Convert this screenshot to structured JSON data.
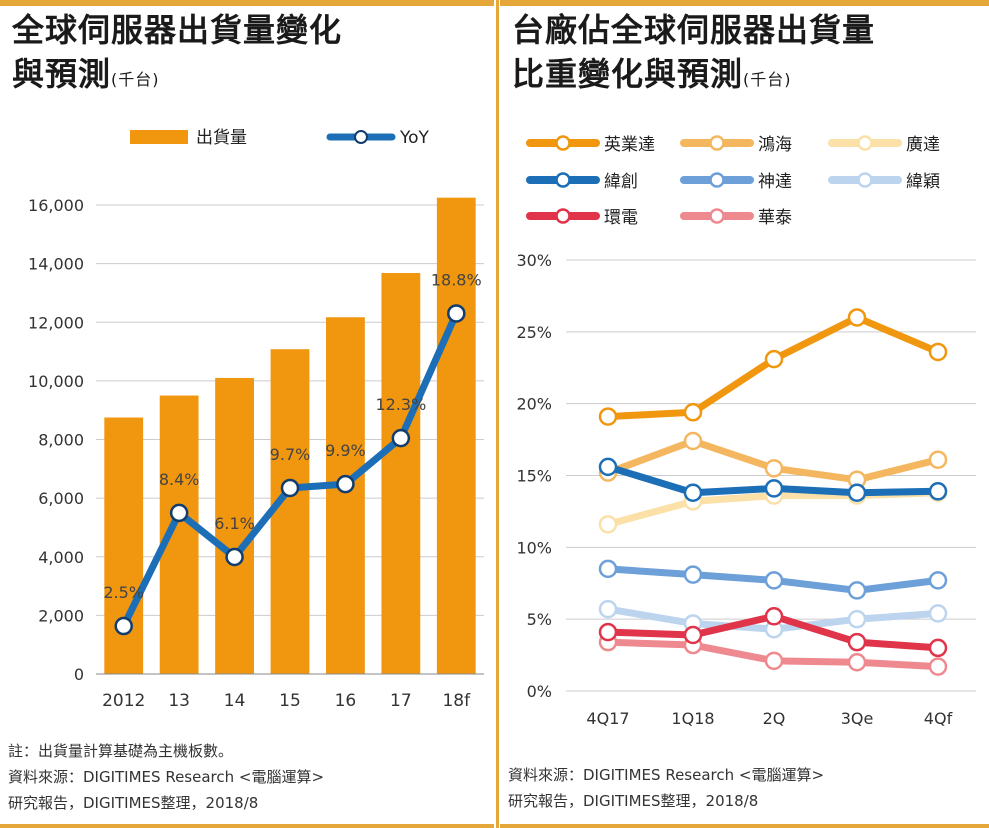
{
  "left": {
    "title_line1": "全球伺服器出貨量變化",
    "title_line2": "與預測",
    "unit": "(千台)",
    "note": "註：出貨量計算基礎為主機板數。",
    "source_line1": "資料來源：DIGITIMES Research <電腦運算>",
    "source_line2": "研究報告，DIGITIMES整理，2018/8"
  },
  "right": {
    "title_line1": "台廠佔全球伺服器出貨量",
    "title_line2": "比重變化與預測",
    "unit": "(千台)",
    "source_line1": "資料來源：DIGITIMES Research <電腦運算>",
    "source_line2": "研究報告，DIGITIMES整理，2018/8"
  },
  "chart_data": [
    {
      "type": "bar",
      "legend": [
        "出貨量",
        "YoY"
      ],
      "categories": [
        "2012",
        "13",
        "14",
        "15",
        "16",
        "17",
        "18f"
      ],
      "series": [
        {
          "name": "出貨量",
          "type": "bar",
          "color": "#f0960f",
          "values": [
            8750,
            9500,
            10100,
            11080,
            12170,
            13680,
            16250
          ]
        },
        {
          "name": "YoY",
          "type": "line",
          "color": "#1c6fb6",
          "values": [
            2.5,
            8.4,
            6.1,
            9.7,
            9.9,
            12.3,
            18.8
          ],
          "labels": [
            "2.5%",
            "8.4%",
            "6.1%",
            "9.7%",
            "9.9%",
            "12.3%",
            "18.8%"
          ]
        }
      ],
      "ylim": [
        0,
        16000
      ],
      "yticks": [
        0,
        2000,
        4000,
        6000,
        8000,
        10000,
        12000,
        14000,
        16000
      ],
      "ytick_labels": [
        "0",
        "2,000",
        "4,000",
        "6,000",
        "8,000",
        "10,000",
        "12,000",
        "14,000",
        "16,000"
      ],
      "grid": true
    },
    {
      "type": "line",
      "categories": [
        "4Q17",
        "1Q18",
        "2Q",
        "3Qe",
        "4Qf"
      ],
      "ylim": [
        0,
        30
      ],
      "yticks": [
        0,
        5,
        10,
        15,
        20,
        25,
        30
      ],
      "ytick_labels": [
        "0%",
        "5%",
        "10%",
        "15%",
        "20%",
        "25%",
        "30%"
      ],
      "grid": true,
      "legend_columns": 3,
      "series": [
        {
          "name": "英業達",
          "color": "#f0960f",
          "values": [
            19.1,
            19.4,
            23.1,
            26.0,
            23.6
          ]
        },
        {
          "name": "鴻海",
          "color": "#f5b660",
          "values": [
            15.2,
            17.4,
            15.5,
            14.7,
            16.1
          ]
        },
        {
          "name": "廣達",
          "color": "#fbe0a8",
          "values": [
            11.6,
            13.2,
            13.6,
            13.6,
            13.8
          ]
        },
        {
          "name": "緯創",
          "color": "#1c6fb6",
          "values": [
            15.6,
            13.8,
            14.1,
            13.8,
            13.9
          ]
        },
        {
          "name": "神達",
          "color": "#6d9fd8",
          "values": [
            8.5,
            8.1,
            7.7,
            7.0,
            7.7
          ]
        },
        {
          "name": "緯穎",
          "color": "#bcd4ee",
          "values": [
            5.7,
            4.7,
            4.3,
            5.0,
            5.4
          ]
        },
        {
          "name": "環電",
          "color": "#e0344a",
          "values": [
            4.1,
            3.9,
            5.2,
            3.4,
            3.0
          ]
        },
        {
          "name": "華泰",
          "color": "#ee8a8f",
          "values": [
            3.4,
            3.2,
            2.1,
            2.0,
            1.7
          ]
        }
      ]
    }
  ]
}
